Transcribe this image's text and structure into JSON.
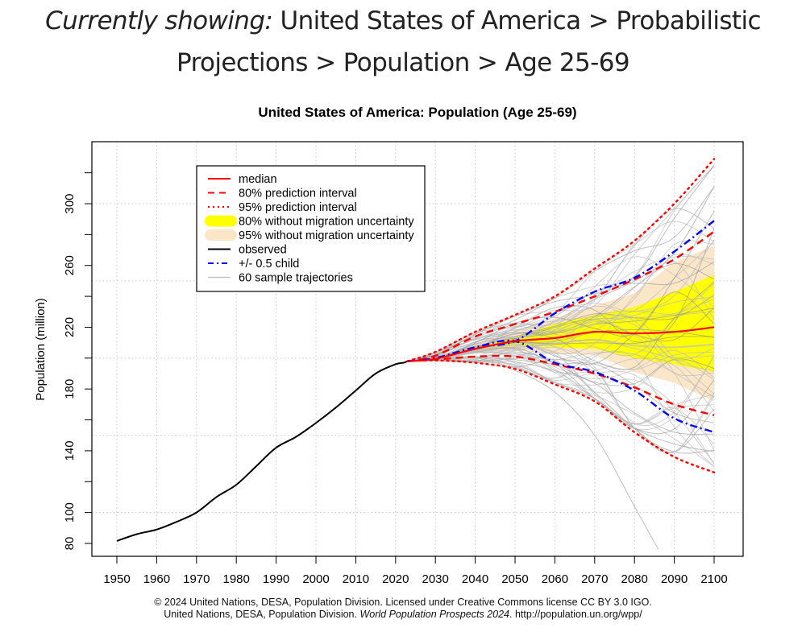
{
  "page": {
    "heading_prefix": "Currently showing:",
    "breadcrumb_line1": "United States of America > Probabilistic",
    "breadcrumb_line2": "Projections > Population > Age 25-69",
    "footer_line1": "© 2024 United Nations, DESA, Population Division. Licensed under Creative Commons license CC BY 3.0 IGO.",
    "footer_line2_a": "United Nations, DESA, Population Division. ",
    "footer_line2_italic": "World Population Prospects 2024",
    "footer_line2_b": ". http://population.un.org/wpp/"
  },
  "colors": {
    "observed": "#000000",
    "median": "#ff0000",
    "pi": "#ff0000",
    "half_child": "#0000ff",
    "band80_nomig": "#ffff00",
    "band95_nomig": "#fbe6c8",
    "trajectories": "#bdbdbd",
    "grid": "#c8c8c8"
  },
  "chart_data": {
    "type": "line",
    "title": "United States of America: Population (Age 25-69)",
    "xlabel": "",
    "ylabel": "Population (million)",
    "xlim": [
      1943,
      2107
    ],
    "ylim": [
      76,
      345
    ],
    "xticks": [
      1950,
      1960,
      1970,
      1980,
      1990,
      2000,
      2010,
      2020,
      2030,
      2040,
      2050,
      2060,
      2070,
      2080,
      2090,
      2100
    ],
    "yticks": [
      80,
      100,
      120,
      140,
      160,
      180,
      200,
      220,
      240,
      260,
      280,
      300,
      320
    ],
    "ytick_labels_shown": [
      80,
      100,
      140,
      180,
      220,
      260,
      300
    ],
    "grid": true,
    "x_grid": [
      1950,
      1960,
      1970,
      1980,
      1990,
      2000,
      2010,
      2020,
      2030,
      2040,
      2050,
      2060,
      2070,
      2080,
      2090,
      2100
    ],
    "y_grid": [
      100,
      150,
      200,
      250,
      300
    ],
    "legend": {
      "position": "top-left",
      "entries": [
        {
          "label": "median",
          "style": "solid-red"
        },
        {
          "label": "80% prediction interval",
          "style": "dashed-red"
        },
        {
          "label": "95% prediction interval",
          "style": "dotted-red"
        },
        {
          "label": "80% without migration uncertainty",
          "style": "band-yellow"
        },
        {
          "label": "95% without migration uncertainty",
          "style": "band-beige"
        },
        {
          "label": "observed",
          "style": "solid-black"
        },
        {
          "label": "+/- 0.5 child",
          "style": "dashdot-blue"
        },
        {
          "label": "60 sample trajectories",
          "style": "solid-grey"
        }
      ]
    },
    "observed": {
      "x": [
        1950,
        1955,
        1960,
        1965,
        1970,
        1975,
        1980,
        1985,
        1990,
        1995,
        2000,
        2005,
        2010,
        2015,
        2020,
        2022,
        2023
      ],
      "y": [
        81.6,
        86,
        89,
        94,
        100,
        110,
        118,
        130,
        142,
        149,
        158,
        168,
        179,
        190,
        196,
        197,
        198
      ]
    },
    "projection_x": [
      2023,
      2030,
      2040,
      2050,
      2060,
      2070,
      2080,
      2090,
      2100
    ],
    "median": [
      198,
      199.5,
      206,
      211,
      213,
      217,
      216,
      217,
      220
    ],
    "pi80_upper": [
      198,
      201.5,
      214,
      222,
      230,
      240,
      251,
      264,
      282
    ],
    "pi80_lower": [
      198,
      199,
      201,
      201,
      196,
      190,
      181,
      170,
      163
    ],
    "pi95_upper": [
      198,
      204,
      217,
      228,
      240,
      258,
      276,
      300,
      329
    ],
    "pi95_lower": [
      198,
      198.5,
      197,
      193,
      183,
      172,
      152,
      136,
      126
    ],
    "half_child_upper": [
      198,
      200,
      207,
      211,
      229,
      243,
      252,
      269,
      289
    ],
    "half_child_lower": [
      198,
      200,
      207,
      211,
      197,
      191,
      179,
      161,
      152
    ],
    "nomig80_upper": [
      198,
      200.5,
      207,
      214,
      222,
      228,
      233,
      243,
      254
    ],
    "nomig80_lower": [
      198,
      199.5,
      205,
      208,
      207,
      206,
      200,
      196,
      191
    ],
    "nomig95_upper": [
      198,
      201,
      209,
      217,
      226,
      234,
      242,
      262,
      273
    ],
    "nomig95_lower": [
      198,
      199,
      203,
      205,
      203,
      202,
      191,
      184,
      172
    ],
    "sample_trajectories_count": 60
  }
}
